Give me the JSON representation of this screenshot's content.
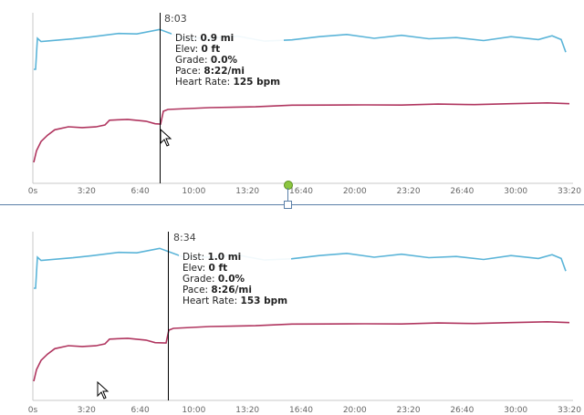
{
  "colors": {
    "elevation_line": "#5ab4d8",
    "heart_rate_line": "#b0355f",
    "cursor_line": "#000000",
    "axis": "#c8c8c8",
    "slider_handle": "#8cc63f",
    "divider": "#5a7fa8"
  },
  "x_ticks": [
    "0s",
    "3:20",
    "6:40",
    "10:00",
    "13:20",
    "16:40",
    "20:00",
    "23:20",
    "26:40",
    "30:00",
    "33:20"
  ],
  "top_panel": {
    "cursor_time": "8:03",
    "tooltip": {
      "dist_label": "Dist:",
      "dist_value": "0.9 mi",
      "elev_label": "Elev:",
      "elev_value": "0 ft",
      "grade_label": "Grade:",
      "grade_value": "0.0%",
      "pace_label": "Pace:",
      "pace_value": "8:22/mi",
      "hr_label": "Heart Rate:",
      "hr_value": "125 bpm"
    }
  },
  "bottom_panel": {
    "cursor_time": "8:34",
    "tooltip": {
      "dist_label": "Dist:",
      "dist_value": "1.0 mi",
      "elev_label": "Elev:",
      "elev_value": "0 ft",
      "grade_label": "Grade:",
      "grade_value": "0.0%",
      "pace_label": "Pace:",
      "pace_value": "8:26/mi",
      "hr_label": "Heart Rate:",
      "hr_value": "153 bpm"
    }
  },
  "icons": {
    "mouse_pointer": "mouse-pointer-icon",
    "range_slider": "range-slider-handle"
  }
}
